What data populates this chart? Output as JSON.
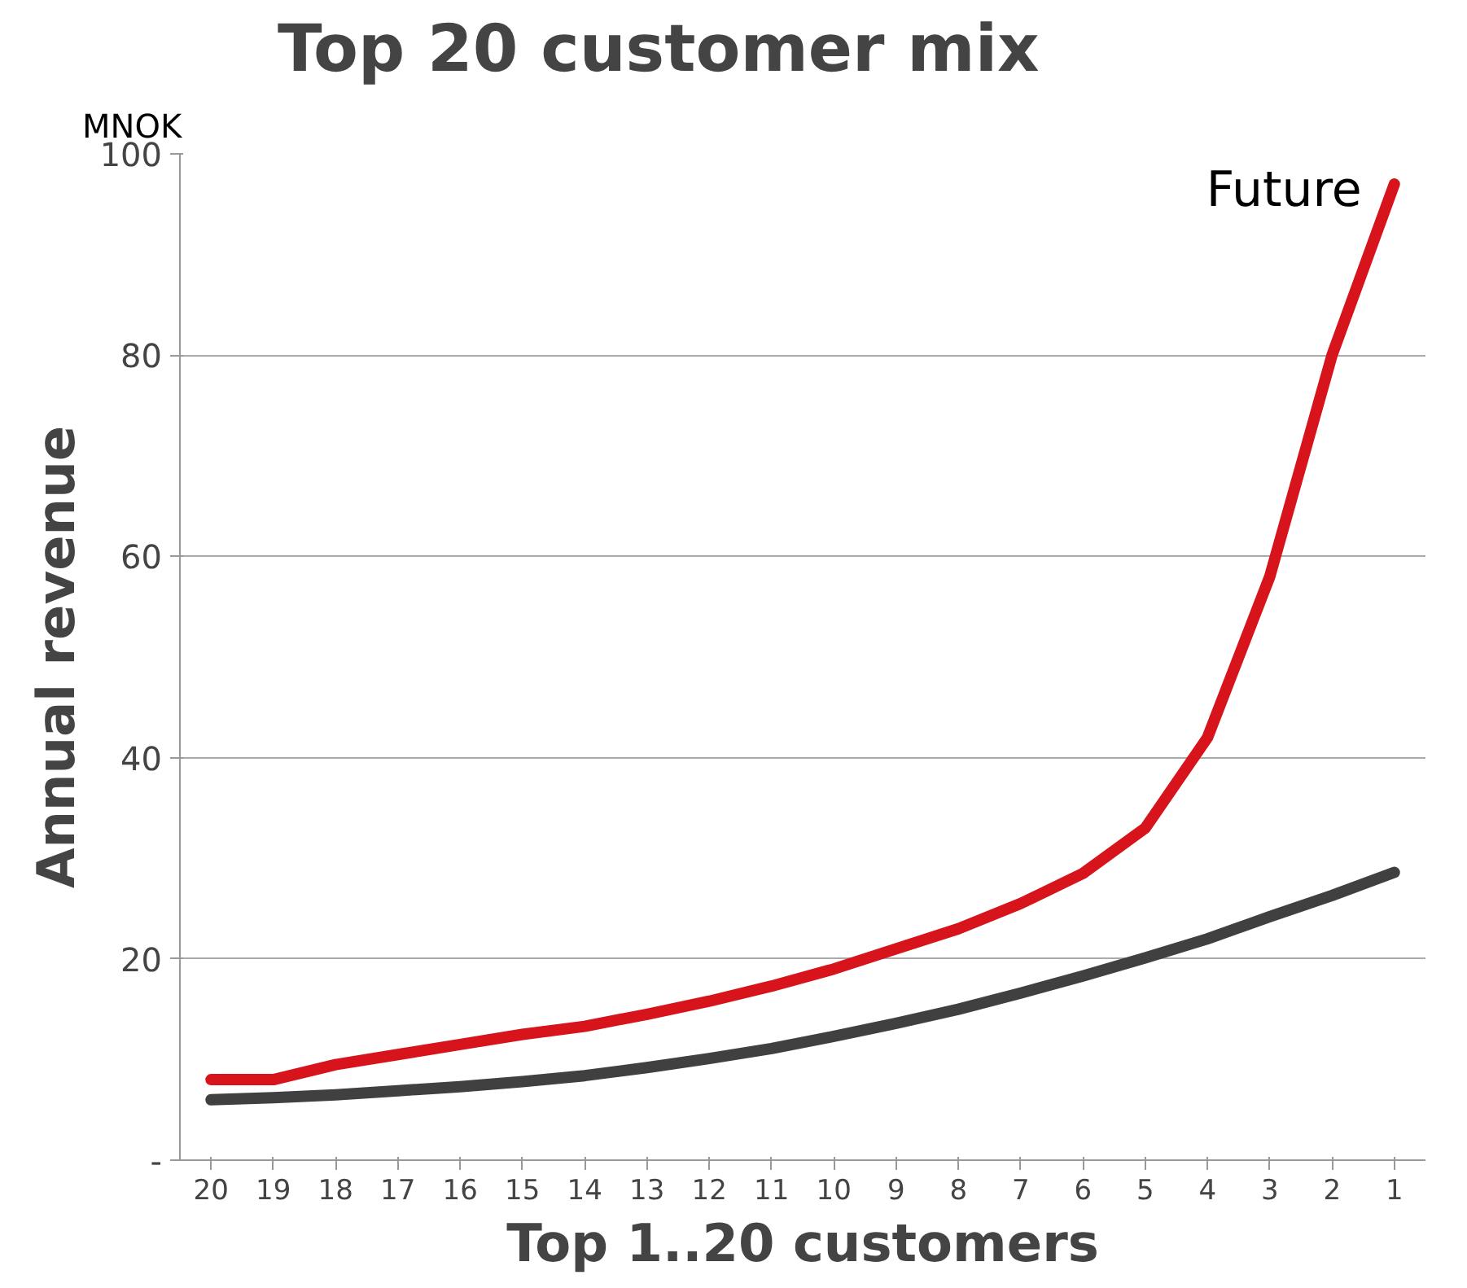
{
  "chart_data": {
    "type": "line",
    "title": "Top 20 customer mix",
    "xlabel": "Top 1..20 customers",
    "ylabel": "Annual revenue",
    "annotations": [
      "MNOK"
    ],
    "categories": [
      "20",
      "19",
      "18",
      "17",
      "16",
      "15",
      "14",
      "13",
      "12",
      "11",
      "10",
      "9",
      "8",
      "7",
      "6",
      "5",
      "4",
      "3",
      "2",
      "1"
    ],
    "series": [
      {
        "name": "Future",
        "color": "#d7141c",
        "values": [
          8,
          8,
          9.5,
          10.5,
          11.5,
          12.5,
          13.3,
          14.5,
          15.8,
          17.3,
          19,
          21,
          23,
          25.5,
          28.5,
          33,
          42,
          58,
          80,
          97
        ]
      },
      {
        "color": "#404040",
        "values": [
          6,
          6.2,
          6.5,
          6.9,
          7.3,
          7.8,
          8.4,
          9.2,
          10.1,
          11.1,
          12.3,
          13.6,
          15,
          16.6,
          18.3,
          20.1,
          22,
          24.2,
          26.3,
          28.6
        ]
      }
    ],
    "ylim": [
      0,
      100
    ],
    "yticks": [
      {
        "value": 0,
        "label": "-"
      },
      20,
      40,
      60,
      80,
      100
    ],
    "grid": "y",
    "marker": "none",
    "line_style": "solid"
  }
}
